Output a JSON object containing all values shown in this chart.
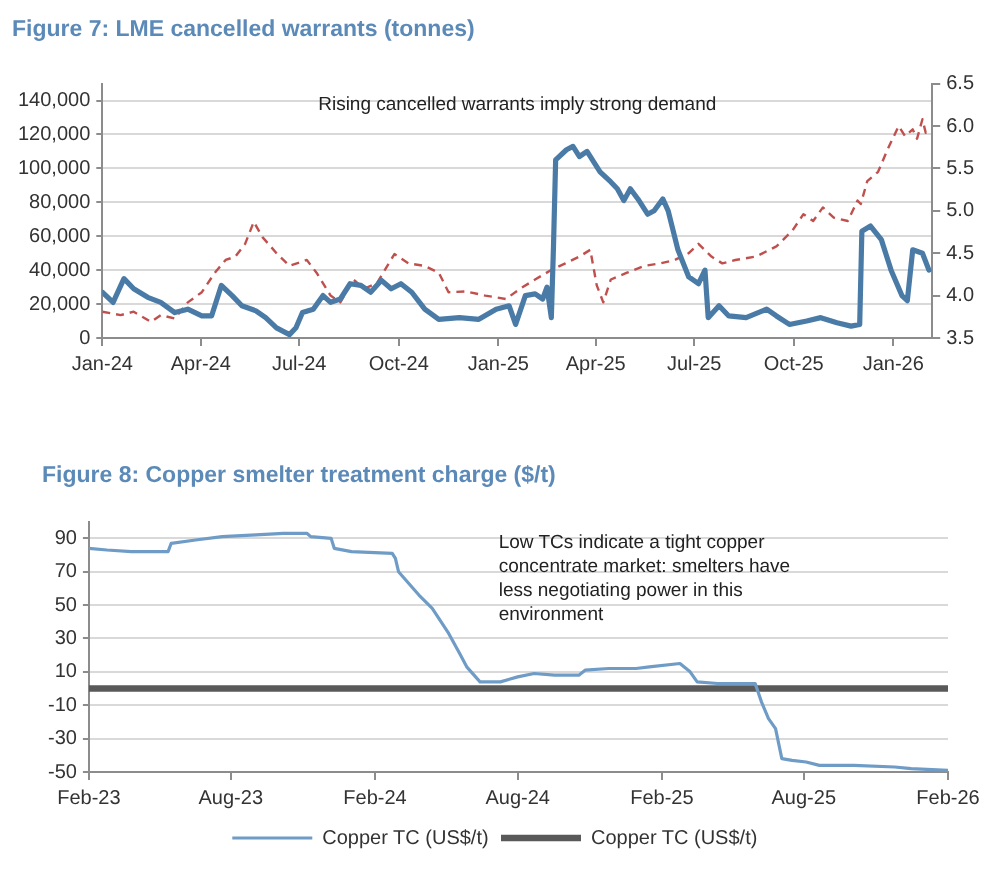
{
  "chart_data": [
    {
      "type": "line",
      "title": "Figure 7: LME cancelled warrants (tonnes)",
      "annotations": [
        "Rising cancelled warrants imply strong demand"
      ],
      "series": [
        {
          "color": "#4a7ba6",
          "x": [
            "2024-01-01",
            "2024-01-11",
            "2024-01-21",
            "2024-01-30",
            "2024-02-12",
            "2024-02-24",
            "2024-03-08",
            "2024-03-20",
            "2024-04-02",
            "2024-04-11",
            "2024-04-20",
            "2024-04-30",
            "2024-05-09",
            "2024-05-22",
            "2024-05-31",
            "2024-06-10",
            "2024-06-22",
            "2024-06-28",
            "2024-07-04",
            "2024-07-14",
            "2024-07-23",
            "2024-07-30",
            "2024-08-08",
            "2024-08-17",
            "2024-08-27",
            "2024-09-05",
            "2024-09-15",
            "2024-09-24",
            "2024-10-03",
            "2024-10-13",
            "2024-10-25",
            "2024-11-07",
            "2024-11-26",
            "2024-12-14",
            "2024-12-30",
            "2025-01-11",
            "2025-01-17",
            "2025-01-26",
            "2025-02-04",
            "2025-02-11",
            "2025-02-15",
            "2025-02-19",
            "2025-02-21",
            "2025-02-23",
            "2025-03-05",
            "2025-03-11",
            "2025-03-17",
            "2025-03-24",
            "2025-03-30",
            "2025-04-05",
            "2025-04-15",
            "2025-04-21",
            "2025-04-27",
            "2025-05-03",
            "2025-05-10",
            "2025-05-19",
            "2025-05-25",
            "2025-06-02",
            "2025-06-07",
            "2025-06-16",
            "2025-06-26",
            "2025-07-05",
            "2025-07-11",
            "2025-07-14",
            "2025-07-24",
            "2025-08-02",
            "2025-08-18",
            "2025-09-06",
            "2025-09-15",
            "2025-09-27",
            "2025-10-13",
            "2025-10-26",
            "2025-11-10",
            "2025-11-23",
            "2025-12-01",
            "2025-12-03",
            "2025-12-11",
            "2025-12-21",
            "2025-12-30",
            "2026-01-09",
            "2026-01-14",
            "2026-01-19",
            "2026-01-28",
            "2026-02-03"
          ],
          "values": [
            27000,
            21000,
            35000,
            29000,
            24000,
            21000,
            15000,
            17000,
            13000,
            13000,
            31000,
            25000,
            19000,
            16000,
            12000,
            6000,
            2000,
            6000,
            15000,
            17000,
            25000,
            21000,
            23000,
            32000,
            31000,
            27000,
            34000,
            29000,
            32000,
            27000,
            17000,
            11000,
            12000,
            11000,
            17000,
            19000,
            8000,
            25000,
            26000,
            23000,
            30000,
            12000,
            54000,
            105000,
            111000,
            113000,
            107000,
            110000,
            104000,
            98000,
            92000,
            88000,
            81000,
            88000,
            82000,
            73000,
            75000,
            82000,
            75000,
            52000,
            36000,
            32000,
            40000,
            12000,
            19000,
            13000,
            12000,
            17000,
            13000,
            8000,
            10000,
            12000,
            9000,
            7000,
            8000,
            63000,
            66000,
            58000,
            40000,
            25000,
            22000,
            52000,
            50000,
            40000
          ]
        },
        {
          "color": "#c0504d",
          "axis": "y2",
          "line_style": "dashed",
          "x": [
            "2024-01-01",
            "2024-01-18",
            "2024-01-30",
            "2024-02-15",
            "2024-02-24",
            "2024-03-08",
            "2024-03-20",
            "2024-04-02",
            "2024-04-14",
            "2024-04-24",
            "2024-05-03",
            "2024-05-12",
            "2024-05-20",
            "2024-05-28",
            "2024-06-10",
            "2024-06-22",
            "2024-07-08",
            "2024-07-17",
            "2024-07-30",
            "2024-08-08",
            "2024-08-20",
            "2024-08-30",
            "2024-09-11",
            "2024-09-27",
            "2024-10-10",
            "2024-10-25",
            "2024-11-07",
            "2024-11-16",
            "2024-12-02",
            "2024-12-20",
            "2025-01-08",
            "2025-01-21",
            "2025-02-04",
            "2025-02-20",
            "2025-03-04",
            "2025-03-17",
            "2025-03-27",
            "2025-04-02",
            "2025-04-08",
            "2025-04-15",
            "2025-04-30",
            "2025-05-16",
            "2025-05-31",
            "2025-06-13",
            "2025-06-26",
            "2025-07-05",
            "2025-07-17",
            "2025-07-27",
            "2025-08-08",
            "2025-08-27",
            "2025-09-15",
            "2025-09-30",
            "2025-10-10",
            "2025-10-19",
            "2025-10-28",
            "2025-11-07",
            "2025-11-20",
            "2025-11-29",
            "2025-12-02",
            "2025-12-08",
            "2025-12-18",
            "2025-12-27",
            "2026-01-06",
            "2026-01-12",
            "2026-01-19",
            "2026-01-23",
            "2026-01-28",
            "2026-01-31",
            "2026-02-03"
          ],
          "values": [
            3.81,
            3.77,
            3.81,
            3.69,
            3.77,
            3.73,
            3.92,
            4.04,
            4.27,
            4.42,
            4.46,
            4.61,
            4.87,
            4.69,
            4.5,
            4.35,
            4.42,
            4.27,
            4.0,
            3.92,
            4.19,
            4.08,
            4.15,
            4.49,
            4.38,
            4.35,
            4.27,
            4.04,
            4.05,
            4.0,
            3.96,
            4.08,
            4.19,
            4.31,
            4.38,
            4.46,
            4.54,
            4.12,
            3.92,
            4.19,
            4.27,
            4.35,
            4.38,
            4.42,
            4.5,
            4.61,
            4.46,
            4.38,
            4.42,
            4.46,
            4.58,
            4.77,
            4.96,
            4.88,
            5.04,
            4.92,
            4.88,
            5.12,
            5.08,
            5.35,
            5.46,
            5.73,
            6.0,
            5.88,
            5.96,
            5.85,
            6.08,
            5.92,
            5.96
          ]
        }
      ],
      "xlim": [
        "2024-01-01",
        "2026-02-06"
      ],
      "xticks": [
        {
          "value": "2024-01-01",
          "label": "Jan-24"
        },
        {
          "value": "2024-04-01",
          "label": "Apr-24"
        },
        {
          "value": "2024-07-01",
          "label": "Jul-24"
        },
        {
          "value": "2024-10-01",
          "label": "Oct-24"
        },
        {
          "value": "2025-01-01",
          "label": "Jan-25"
        },
        {
          "value": "2025-04-01",
          "label": "Apr-25"
        },
        {
          "value": "2025-07-01",
          "label": "Jul-25"
        },
        {
          "value": "2025-10-01",
          "label": "Oct-25"
        },
        {
          "value": "2026-01-01",
          "label": "Jan-26"
        }
      ],
      "ylim": [
        0,
        150000
      ],
      "yticks": [
        0,
        {
          "value": 20000,
          "label": "20,000"
        },
        {
          "value": 40000,
          "label": "40,000"
        },
        {
          "value": 60000,
          "label": "60,000"
        },
        {
          "value": 80000,
          "label": "80,000"
        },
        {
          "value": 100000,
          "label": "100,000"
        },
        {
          "value": 120000,
          "label": "120,000"
        },
        {
          "value": 140000,
          "label": "140,000"
        }
      ],
      "y2lim": [
        3.5,
        6.5
      ],
      "y2ticks": [
        3.5,
        {
          "value": 4,
          "label": "4.0"
        },
        4.5,
        {
          "value": 5,
          "label": "5.0"
        },
        5.5,
        {
          "value": 6,
          "label": "6.0"
        },
        6.5
      ],
      "grid": "y",
      "marker": "none"
    },
    {
      "type": "line",
      "title": "Figure 8: Copper smelter treatment charge ($/t)",
      "annotations": [
        "Low TCs indicate a tight copper concentrate market: smelters have less negotiating power in this environment"
      ],
      "series": [
        {
          "name": "Copper TC (US$/t)",
          "color": "#6f9cc7",
          "x": [
            "2023-02-01",
            "2023-02-24",
            "2023-03-27",
            "2023-05-13",
            "2023-05-17",
            "2023-06-17",
            "2023-07-21",
            "2023-09-02",
            "2023-10-07",
            "2023-11-06",
            "2023-11-11",
            "2023-12-07",
            "2023-12-11",
            "2024-01-02",
            "2024-02-23",
            "2024-02-27",
            "2024-03-02",
            "2024-03-28",
            "2024-04-14",
            "2024-05-05",
            "2024-05-19",
            "2024-05-28",
            "2024-06-14",
            "2024-07-10",
            "2024-08-01",
            "2024-08-22",
            "2024-09-17",
            "2024-10-18",
            "2024-10-26",
            "2024-11-25",
            "2024-12-30",
            "2025-01-16",
            "2025-02-24",
            "2025-03-09",
            "2025-03-18",
            "2025-04-13",
            "2025-05-31",
            "2025-06-08",
            "2025-06-17",
            "2025-06-26",
            "2025-07-04",
            "2025-07-17",
            "2025-08-04",
            "2025-08-21",
            "2025-10-04",
            "2025-11-25",
            "2025-12-16",
            "2026-02-01"
          ],
          "values": [
            84,
            83,
            82,
            82,
            87,
            89,
            91,
            92,
            93,
            93,
            91,
            90,
            84,
            82,
            81,
            78,
            70,
            56,
            48,
            33,
            21,
            13,
            4,
            4,
            7,
            9,
            8,
            8,
            11,
            12,
            12,
            13,
            15,
            10,
            4,
            3,
            3,
            -8,
            -18,
            -24,
            -42,
            -43,
            -44,
            -46,
            -46,
            -47,
            -48,
            -49
          ]
        },
        {
          "name": "Copper TC (US$/t)",
          "color": "#595959",
          "x": [
            "2023-02-01",
            "2026-02-01"
          ],
          "values": [
            0,
            0
          ]
        }
      ],
      "xlim": [
        "2023-02-01",
        "2026-02-01"
      ],
      "xticks": [
        {
          "value": "2023-02-01",
          "label": "Feb-23"
        },
        {
          "value": "2023-08-01",
          "label": "Aug-23"
        },
        {
          "value": "2024-02-01",
          "label": "Feb-24"
        },
        {
          "value": "2024-08-01",
          "label": "Aug-24"
        },
        {
          "value": "2025-02-01",
          "label": "Feb-25"
        },
        {
          "value": "2025-08-01",
          "label": "Aug-25"
        },
        {
          "value": "2026-02-01",
          "label": "Feb-26"
        }
      ],
      "ylim": [
        -50,
        100
      ],
      "yticks": [
        -50,
        -30,
        -10,
        10,
        30,
        50,
        70,
        90
      ],
      "grid": "y",
      "legend": "bottom",
      "marker": "none"
    }
  ]
}
